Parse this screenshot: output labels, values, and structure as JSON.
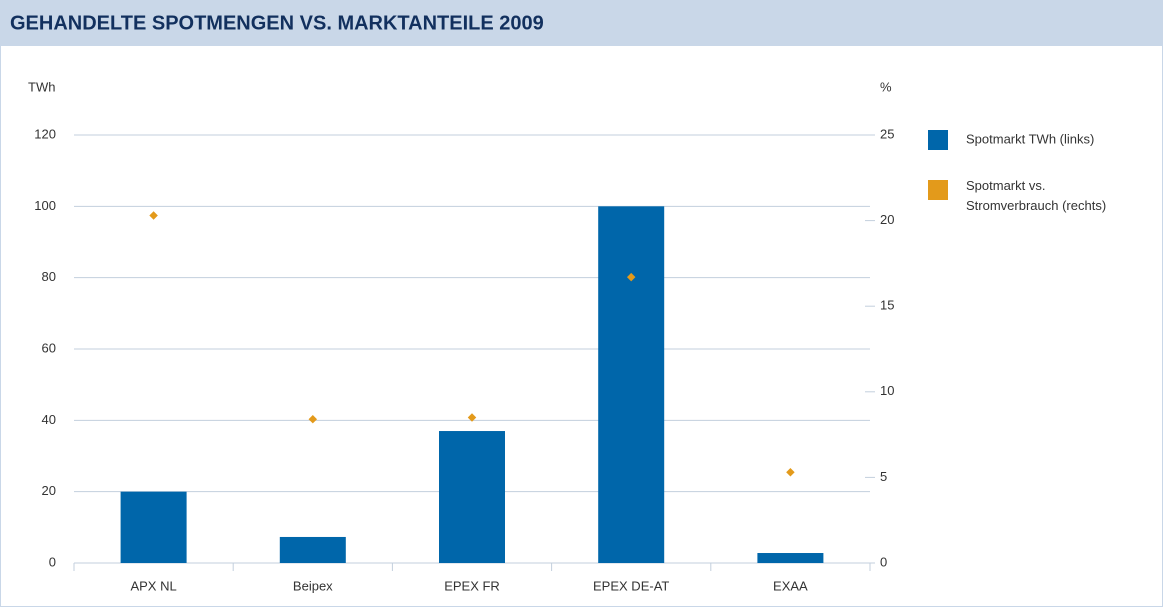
{
  "chart_data": {
    "type": "bar",
    "title": "GEHANDELTE SPOTMENGEN VS. MARKTANTEILE 2009",
    "y_label": "TWh",
    "y2_label": "%",
    "categories": [
      "APX NL",
      "Beipex",
      "EPEX FR",
      "EPEX DE-AT",
      "EXAA"
    ],
    "series": [
      {
        "name": "Spotmarkt TWh (links)",
        "color": "#0066aa",
        "type": "bar",
        "values": [
          20,
          7.3,
          37,
          100,
          2.8
        ]
      },
      {
        "name": "Spotmarkt vs. Stromverbrauch (rechts)",
        "color": "#e39a1b",
        "type": "scatter",
        "axis": "y2",
        "values": [
          20.3,
          8.4,
          8.5,
          16.7,
          5.3
        ]
      }
    ],
    "ylim": [
      0,
      120
    ],
    "yticks": [
      0,
      20,
      40,
      60,
      80,
      100,
      120
    ],
    "y2lim": [
      0,
      25
    ],
    "y2ticks": [
      0,
      5,
      10,
      15,
      20,
      25
    ],
    "grid": true,
    "legend": "right"
  }
}
